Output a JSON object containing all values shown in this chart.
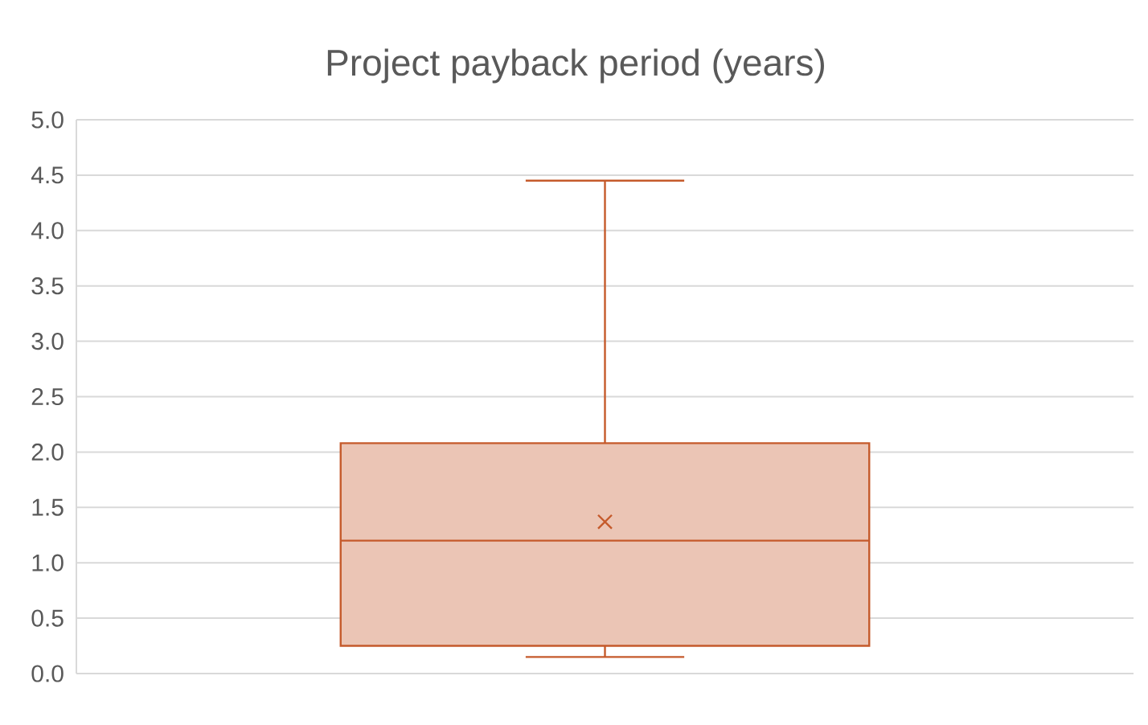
{
  "chart_data": {
    "type": "box",
    "title": "Project payback period (years)",
    "categories": [
      null
    ],
    "boxes": [
      {
        "low": 0.15,
        "q1": 0.25,
        "median": 1.2,
        "q3": 2.08,
        "high": 4.45,
        "mean": 1.37
      }
    ],
    "color": "#c55a2b",
    "ylim": [
      0,
      5
    ],
    "yticks": [
      {
        "value": 0,
        "label": "0.0"
      },
      {
        "value": 0.5,
        "label": "0.5"
      },
      {
        "value": 1,
        "label": "1.0"
      },
      {
        "value": 1.5,
        "label": "1.5"
      },
      {
        "value": 2,
        "label": "2.0"
      },
      {
        "value": 2.5,
        "label": "2.5"
      },
      {
        "value": 3,
        "label": "3.0"
      },
      {
        "value": 3.5,
        "label": "3.5"
      },
      {
        "value": 4,
        "label": "4.0"
      },
      {
        "value": 4.5,
        "label": "4.5"
      },
      {
        "value": 5,
        "label": "5.0"
      }
    ],
    "grid": "y"
  }
}
